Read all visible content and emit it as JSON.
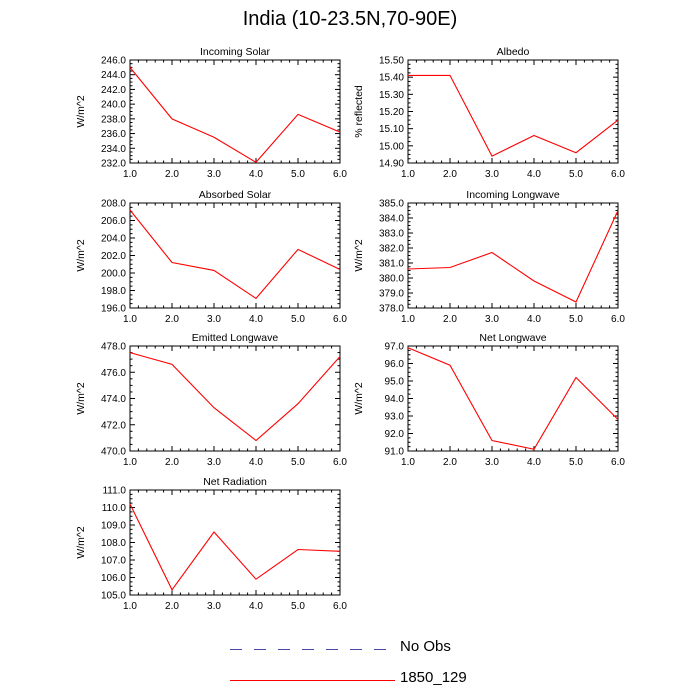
{
  "title": "India (10-23.5N,70-90E)",
  "colors": {
    "series": "#ff0000",
    "obs": "#4a4aa0",
    "axis": "#000000"
  },
  "legend": [
    {
      "label": "No Obs",
      "style": "dashed",
      "color": "#4a4aa0"
    },
    {
      "label": "1850_129",
      "style": "solid",
      "color": "#ff0000"
    }
  ],
  "chart_data": [
    {
      "type": "line",
      "title": "Incoming Solar",
      "ylabel": "W/m^2",
      "x": [
        1,
        2,
        3,
        4,
        5,
        6
      ],
      "xlim": [
        1,
        6
      ],
      "ylim": [
        232,
        246
      ],
      "xticks": [
        "1.0",
        "2.0",
        "3.0",
        "4.0",
        "5.0",
        "6.0"
      ],
      "yticks": [
        "232.0",
        "234.0",
        "236.0",
        "238.0",
        "240.0",
        "242.0",
        "244.0",
        "246.0"
      ],
      "series": [
        {
          "name": "1850_129",
          "values": [
            245.0,
            238.0,
            235.5,
            232.1,
            238.6,
            236.2
          ]
        }
      ]
    },
    {
      "type": "line",
      "title": "Albedo",
      "ylabel": "% reflected",
      "x": [
        1,
        2,
        3,
        4,
        5,
        6
      ],
      "xlim": [
        1,
        6
      ],
      "ylim": [
        14.9,
        15.5
      ],
      "xticks": [
        "1.0",
        "2.0",
        "3.0",
        "4.0",
        "5.0",
        "6.0"
      ],
      "yticks": [
        "14.90",
        "15.00",
        "15.10",
        "15.20",
        "15.30",
        "15.40",
        "15.50"
      ],
      "series": [
        {
          "name": "1850_129",
          "values": [
            15.41,
            15.41,
            14.94,
            15.06,
            14.96,
            15.15
          ]
        }
      ]
    },
    {
      "type": "line",
      "title": "Absorbed Solar",
      "ylabel": "W/m^2",
      "x": [
        1,
        2,
        3,
        4,
        5,
        6
      ],
      "xlim": [
        1,
        6
      ],
      "ylim": [
        196,
        208
      ],
      "xticks": [
        "1.0",
        "2.0",
        "3.0",
        "4.0",
        "5.0",
        "6.0"
      ],
      "yticks": [
        "196.0",
        "198.0",
        "200.0",
        "202.0",
        "204.0",
        "206.0",
        "208.0"
      ],
      "series": [
        {
          "name": "1850_129",
          "values": [
            207.2,
            201.2,
            200.3,
            197.1,
            202.7,
            200.4
          ]
        }
      ]
    },
    {
      "type": "line",
      "title": "Incoming Longwave",
      "ylabel": "W/m^2",
      "x": [
        1,
        2,
        3,
        4,
        5,
        6
      ],
      "xlim": [
        1,
        6
      ],
      "ylim": [
        378,
        385
      ],
      "xticks": [
        "1.0",
        "2.0",
        "3.0",
        "4.0",
        "5.0",
        "6.0"
      ],
      "yticks": [
        "378.0",
        "379.0",
        "380.0",
        "381.0",
        "382.0",
        "383.0",
        "384.0",
        "385.0"
      ],
      "series": [
        {
          "name": "1850_129",
          "values": [
            380.6,
            380.7,
            381.7,
            379.8,
            378.4,
            384.5
          ]
        }
      ]
    },
    {
      "type": "line",
      "title": "Emitted Longwave",
      "ylabel": "W/m^2",
      "x": [
        1,
        2,
        3,
        4,
        5,
        6
      ],
      "xlim": [
        1,
        6
      ],
      "ylim": [
        470,
        478
      ],
      "xticks": [
        "1.0",
        "2.0",
        "3.0",
        "4.0",
        "5.0",
        "6.0"
      ],
      "yticks": [
        "470.0",
        "472.0",
        "474.0",
        "476.0",
        "478.0"
      ],
      "series": [
        {
          "name": "1850_129",
          "values": [
            477.5,
            476.6,
            473.3,
            470.8,
            473.6,
            477.2
          ]
        }
      ]
    },
    {
      "type": "line",
      "title": "Net Longwave",
      "ylabel": "W/m^2",
      "x": [
        1,
        2,
        3,
        4,
        5,
        6
      ],
      "xlim": [
        1,
        6
      ],
      "ylim": [
        91,
        97
      ],
      "xticks": [
        "1.0",
        "2.0",
        "3.0",
        "4.0",
        "5.0",
        "6.0"
      ],
      "yticks": [
        "91.0",
        "92.0",
        "93.0",
        "94.0",
        "95.0",
        "96.0",
        "97.0"
      ],
      "series": [
        {
          "name": "1850_129",
          "values": [
            96.9,
            95.9,
            91.6,
            91.1,
            95.2,
            92.8
          ]
        }
      ]
    },
    {
      "type": "line",
      "title": "Net Radiation",
      "ylabel": "W/m^2",
      "x": [
        1,
        2,
        3,
        4,
        5,
        6
      ],
      "xlim": [
        1,
        6
      ],
      "ylim": [
        105,
        111
      ],
      "xticks": [
        "1.0",
        "2.0",
        "3.0",
        "4.0",
        "5.0",
        "6.0"
      ],
      "yticks": [
        "105.0",
        "106.0",
        "107.0",
        "108.0",
        "109.0",
        "110.0",
        "111.0"
      ],
      "series": [
        {
          "name": "1850_129",
          "values": [
            110.2,
            105.3,
            108.6,
            105.9,
            107.6,
            107.5
          ]
        }
      ]
    }
  ]
}
